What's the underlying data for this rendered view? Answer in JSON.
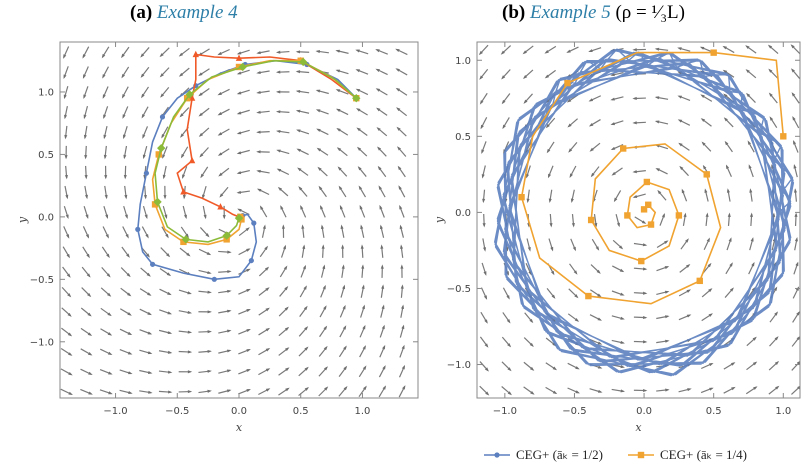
{
  "chart_data": [
    {
      "type": "line",
      "panel_label": "(a)",
      "title_link": "Example 4",
      "title_suffix": "",
      "xlabel": "x",
      "ylabel": "y",
      "xlim": [
        -1.45,
        1.45
      ],
      "ylim": [
        -1.45,
        1.4
      ],
      "xticks": [
        -1.0,
        -0.5,
        0.0,
        0.5,
        1.0
      ],
      "yticks": [
        -1.0,
        -0.5,
        0.0,
        0.5,
        1.0
      ],
      "xtick_labels": [
        "−1.0",
        "−0.5",
        "0.0",
        "0.5",
        "1.0"
      ],
      "ytick_labels": [
        "−1.0",
        "−0.5",
        "0.0",
        "0.5",
        "1.0"
      ],
      "background": "stream plot of a rotational vector field (counter-clockwise spiral toward the origin)",
      "series": [
        {
          "color": "#5b7fbf",
          "marker": "circle",
          "points": [
            [
              0.95,
              0.95
            ],
            [
              0.8,
              1.1
            ],
            [
              0.55,
              1.22
            ],
            [
              0.3,
              1.25
            ],
            [
              0.05,
              1.22
            ],
            [
              -0.15,
              1.15
            ],
            [
              -0.35,
              1.05
            ],
            [
              -0.5,
              0.95
            ],
            [
              -0.62,
              0.8
            ],
            [
              -0.7,
              0.6
            ],
            [
              -0.75,
              0.35
            ],
            [
              -0.8,
              0.1
            ],
            [
              -0.82,
              -0.1
            ],
            [
              -0.78,
              -0.28
            ],
            [
              -0.7,
              -0.38
            ],
            [
              -0.45,
              -0.45
            ],
            [
              -0.2,
              -0.5
            ],
            [
              0.0,
              -0.48
            ],
            [
              0.1,
              -0.35
            ],
            [
              0.14,
              -0.2
            ],
            [
              0.12,
              -0.05
            ],
            [
              0.07,
              0.02
            ],
            [
              0.03,
              0.01
            ],
            [
              0.01,
              0.0
            ]
          ]
        },
        {
          "color": "#f05a28",
          "marker": "triangle",
          "points": [
            [
              0.95,
              0.95
            ],
            [
              0.75,
              1.1
            ],
            [
              0.5,
              1.25
            ],
            [
              0.25,
              1.28
            ],
            [
              0.0,
              1.27
            ],
            [
              -0.2,
              1.28
            ],
            [
              -0.35,
              1.3
            ],
            [
              -0.35,
              1.1
            ],
            [
              -0.38,
              0.95
            ],
            [
              -0.42,
              0.7
            ],
            [
              -0.38,
              0.45
            ],
            [
              -0.5,
              0.35
            ],
            [
              -0.45,
              0.2
            ],
            [
              -0.3,
              0.15
            ],
            [
              -0.15,
              0.08
            ],
            [
              -0.05,
              0.02
            ],
            [
              0.0,
              0.0
            ]
          ]
        },
        {
          "color": "#f0a330",
          "marker": "square",
          "points": [
            [
              0.95,
              0.95
            ],
            [
              0.75,
              1.12
            ],
            [
              0.5,
              1.25
            ],
            [
              0.25,
              1.25
            ],
            [
              0.0,
              1.2
            ],
            [
              -0.25,
              1.1
            ],
            [
              -0.42,
              0.95
            ],
            [
              -0.55,
              0.75
            ],
            [
              -0.65,
              0.5
            ],
            [
              -0.7,
              0.3
            ],
            [
              -0.68,
              0.1
            ],
            [
              -0.6,
              -0.1
            ],
            [
              -0.45,
              -0.2
            ],
            [
              -0.25,
              -0.22
            ],
            [
              -0.1,
              -0.18
            ],
            [
              0.0,
              -0.1
            ],
            [
              0.02,
              -0.02
            ],
            [
              0.01,
              0.0
            ]
          ]
        },
        {
          "color": "#8cbb3a",
          "marker": "diamond",
          "points": [
            [
              0.95,
              0.95
            ],
            [
              0.78,
              1.1
            ],
            [
              0.52,
              1.24
            ],
            [
              0.28,
              1.25
            ],
            [
              0.03,
              1.2
            ],
            [
              -0.22,
              1.12
            ],
            [
              -0.4,
              0.98
            ],
            [
              -0.53,
              0.8
            ],
            [
              -0.63,
              0.55
            ],
            [
              -0.68,
              0.35
            ],
            [
              -0.66,
              0.12
            ],
            [
              -0.58,
              -0.08
            ],
            [
              -0.43,
              -0.18
            ],
            [
              -0.25,
              -0.2
            ],
            [
              -0.1,
              -0.15
            ],
            [
              -0.02,
              -0.07
            ],
            [
              0.0,
              -0.01
            ]
          ]
        }
      ]
    },
    {
      "type": "line",
      "panel_label": "(b)",
      "title_link": "Example 5",
      "title_suffix": " (ρ = ¹⁄₃L)",
      "xlabel": "x",
      "ylabel": "y",
      "xlim": [
        -1.2,
        1.12
      ],
      "ylim": [
        -1.22,
        1.12
      ],
      "xticks": [
        -1.0,
        -0.5,
        0.0,
        0.5,
        1.0
      ],
      "yticks": [
        -1.0,
        -0.5,
        0.0,
        0.5,
        1.0
      ],
      "xtick_labels": [
        "−1.0",
        "−0.5",
        "0.0",
        "0.5",
        "1.0"
      ],
      "ytick_labels": [
        "−1.0",
        "−0.5",
        "0.0",
        "0.5",
        "1.0"
      ],
      "background": "stream plot of a rotational vector field (counter-clockwise rotation about the origin)",
      "series": [
        {
          "name": "CEG+ (āₖ = 1/2)",
          "color": "#5b7fbf",
          "marker": "circle",
          "shape": "dense limit cycle, near-octagonal band with outer radius about 1.1 and inner radius about 0.95"
        },
        {
          "name": "CEG+ (āₖ = 1/4)",
          "color": "#f0a330",
          "marker": "square",
          "points": [
            [
              1.0,
              0.5
            ],
            [
              0.95,
              1.0
            ],
            [
              0.5,
              1.05
            ],
            [
              -0.05,
              1.05
            ],
            [
              -0.55,
              0.85
            ],
            [
              -0.8,
              0.5
            ],
            [
              -0.88,
              0.1
            ],
            [
              -0.75,
              -0.3
            ],
            [
              -0.4,
              -0.55
            ],
            [
              0.05,
              -0.6
            ],
            [
              0.4,
              -0.45
            ],
            [
              0.55,
              -0.1
            ],
            [
              0.45,
              0.25
            ],
            [
              0.15,
              0.45
            ],
            [
              -0.15,
              0.42
            ],
            [
              -0.35,
              0.22
            ],
            [
              -0.38,
              -0.05
            ],
            [
              -0.25,
              -0.25
            ],
            [
              -0.02,
              -0.32
            ],
            [
              0.18,
              -0.22
            ],
            [
              0.25,
              -0.02
            ],
            [
              0.18,
              0.15
            ],
            [
              0.02,
              0.2
            ],
            [
              -0.1,
              0.1
            ],
            [
              -0.12,
              -0.02
            ],
            [
              -0.05,
              -0.1
            ],
            [
              0.05,
              -0.08
            ],
            [
              0.08,
              0.0
            ],
            [
              0.03,
              0.05
            ],
            [
              0.0,
              0.02
            ]
          ]
        }
      ],
      "legend_position": "bottom"
    }
  ],
  "legend": [
    {
      "label": "CEG+ (āₖ = 1/2)",
      "color": "#5b7fbf",
      "marker": "circle"
    },
    {
      "label": "CEG+ (āₖ = 1/4)",
      "color": "#f0a330",
      "marker": "square"
    }
  ]
}
